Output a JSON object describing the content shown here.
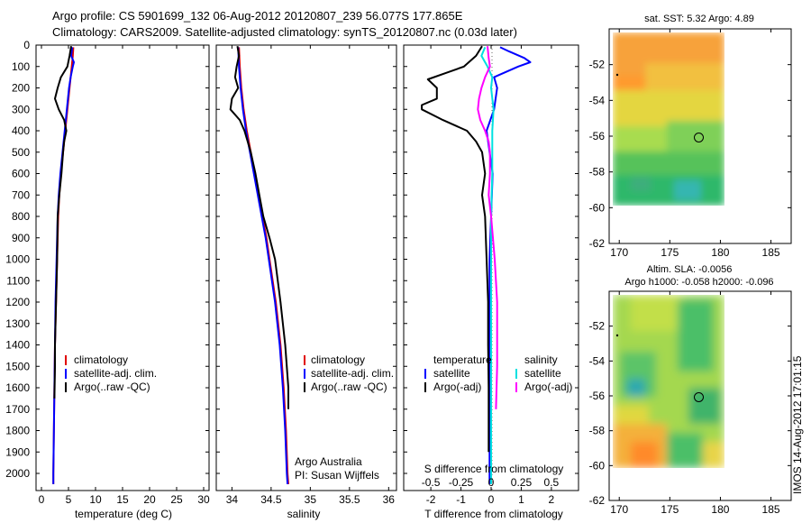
{
  "header": {
    "line1": "Argo profile: CS 5901699_132 06-Aug-2012 20120807_239 56.077S 177.865E",
    "line2": "Climatology: CARS2009. Satellite-adjusted climatology: synTS_20120807.nc (0.03d later)"
  },
  "colors": {
    "climatology": "#e00000",
    "satellite": "#0000ff",
    "argo": "#000000",
    "sal_satellite": "#00e0e0",
    "sal_argo": "#ff00ff"
  },
  "chart_data": [
    {
      "type": "line",
      "panel": "temperature",
      "xlabel": "temperature (deg C)",
      "ylabel": "",
      "xlim": [
        -1,
        31
      ],
      "ylim": [
        2080,
        0
      ],
      "xticks": [
        "0",
        "5",
        "10",
        "15",
        "20",
        "25",
        "30"
      ],
      "yticks": [
        "0",
        "100",
        "200",
        "300",
        "400",
        "500",
        "600",
        "700",
        "800",
        "900",
        "1000",
        "1100",
        "1200",
        "1300",
        "1400",
        "1500",
        "1600",
        "1700",
        "1800",
        "1900",
        "2000"
      ],
      "legend": [
        "climatology",
        "satellite-adj. clim.",
        "Argo(..raw -QC)"
      ],
      "series": [
        {
          "name": "climatology",
          "color": "#e00000",
          "y": [
            10,
            50,
            100,
            200,
            300,
            400,
            500,
            600,
            700,
            800,
            1000,
            1200,
            1400,
            1600,
            1800,
            2000,
            2050
          ],
          "x": [
            5.9,
            5.8,
            5.6,
            5.2,
            4.8,
            4.4,
            4.0,
            3.6,
            3.3,
            3.1,
            2.9,
            2.7,
            2.5,
            2.4,
            2.3,
            2.2,
            2.2
          ]
        },
        {
          "name": "satellite-adj. clim.",
          "color": "#0000ff",
          "y": [
            10,
            50,
            80,
            100,
            150,
            200,
            300,
            400,
            500,
            600,
            700,
            800,
            1000,
            1200,
            1400,
            1600,
            1800,
            2000,
            2050
          ],
          "x": [
            5.7,
            5.5,
            6.0,
            5.8,
            5.4,
            5.1,
            4.7,
            4.3,
            3.9,
            3.5,
            3.2,
            3.0,
            2.8,
            2.6,
            2.5,
            2.4,
            2.3,
            2.2,
            2.2
          ]
        },
        {
          "name": "Argo(..raw -QC)",
          "color": "#000000",
          "y": [
            5,
            50,
            100,
            150,
            200,
            250,
            300,
            350,
            400,
            450,
            500,
            600,
            700,
            800,
            1000,
            1200,
            1400,
            1500,
            1650
          ],
          "x": [
            5.5,
            5.2,
            4.8,
            3.6,
            3.0,
            2.5,
            3.2,
            4.2,
            4.6,
            4.2,
            4.0,
            3.7,
            3.3,
            3.0,
            2.9,
            2.7,
            2.5,
            2.5,
            2.4
          ]
        }
      ]
    },
    {
      "type": "line",
      "panel": "salinity",
      "xlabel": "salinity",
      "ylabel": "",
      "xlim": [
        33.8,
        36.1
      ],
      "ylim": [
        2080,
        0
      ],
      "xticks": [
        "34",
        "34.5",
        "35",
        "35.5",
        "36"
      ],
      "legend": [
        "climatology",
        "satellite-adj. clim.",
        "Argo(..raw -QC)"
      ],
      "annotation": [
        "Argo Australia",
        "PI: Susan Wijffels"
      ],
      "series": [
        {
          "name": "climatology",
          "color": "#e00000",
          "y": [
            10,
            100,
            200,
            300,
            400,
            500,
            600,
            700,
            800,
            900,
            1000,
            1200,
            1400,
            1600,
            1800,
            2000,
            2050
          ],
          "x": [
            34.09,
            34.1,
            34.12,
            34.15,
            34.19,
            34.24,
            34.29,
            34.34,
            34.39,
            34.44,
            34.48,
            34.56,
            34.62,
            34.66,
            34.69,
            34.71,
            34.72
          ]
        },
        {
          "name": "satellite-adj. clim.",
          "color": "#0000ff",
          "y": [
            10,
            100,
            200,
            300,
            400,
            500,
            600,
            700,
            800,
            900,
            1000,
            1200,
            1400,
            1600,
            1800,
            2000,
            2050
          ],
          "x": [
            34.08,
            34.09,
            34.11,
            34.14,
            34.18,
            34.23,
            34.28,
            34.33,
            34.38,
            34.43,
            34.47,
            34.55,
            34.61,
            34.65,
            34.68,
            34.7,
            34.71
          ]
        },
        {
          "name": "Argo(..raw -QC)",
          "color": "#000000",
          "y": [
            5,
            50,
            100,
            150,
            200,
            250,
            300,
            350,
            400,
            450,
            500,
            600,
            700,
            800,
            900,
            1000,
            1200,
            1400,
            1600,
            1700
          ],
          "x": [
            34.07,
            34.09,
            34.06,
            34.04,
            34.08,
            34.0,
            33.98,
            34.1,
            34.16,
            34.2,
            34.24,
            34.3,
            34.35,
            34.4,
            34.48,
            34.55,
            34.62,
            34.68,
            34.72,
            34.72
          ]
        }
      ]
    },
    {
      "type": "line",
      "panel": "difference",
      "xlabel": "T difference from climatology",
      "xlabel_top": "S difference from climatology",
      "xlim": [
        -2.9,
        2.9
      ],
      "ylim": [
        2080,
        0
      ],
      "xticks": [
        "-2",
        "-1",
        "0",
        "1",
        "2"
      ],
      "xticks_top": [
        "-0.5",
        "-0.25",
        "0",
        "0.25",
        "0.5"
      ],
      "legend_temperature": [
        "temperature",
        "satellite",
        "Argo(-adj)"
      ],
      "legend_salinity": [
        "salinity",
        "satellite",
        "Argo(-adj)"
      ],
      "series": [
        {
          "name": "temperature satellite",
          "color": "#0000ff",
          "y": [
            10,
            30,
            60,
            80,
            100,
            150,
            200,
            300,
            400,
            600,
            800,
            1000,
            1500,
            2000,
            2050
          ],
          "x": [
            0.3,
            0.6,
            1.1,
            1.3,
            0.9,
            0.1,
            0.2,
            0.1,
            -0.15,
            0.05,
            0.0,
            -0.05,
            -0.05,
            -0.05,
            -0.05
          ]
        },
        {
          "name": "temperature Argo(-adj)",
          "color": "#000000",
          "y": [
            5,
            50,
            100,
            130,
            160,
            200,
            250,
            280,
            300,
            350,
            400,
            450,
            500,
            600,
            700,
            800,
            1000,
            1200,
            1400,
            1600,
            1800,
            1900
          ],
          "x": [
            -0.3,
            -0.5,
            -0.9,
            -1.5,
            -2.1,
            -1.8,
            -1.8,
            -2.3,
            -2.3,
            -1.6,
            -0.8,
            -0.5,
            -0.3,
            -0.2,
            -0.3,
            -0.2,
            -0.15,
            -0.1,
            -0.1,
            -0.08,
            -0.08,
            -0.08
          ]
        },
        {
          "name": "salinity satellite",
          "color": "#00e0e0",
          "y": [
            10,
            50,
            80,
            100,
            150,
            200,
            300,
            400,
            600,
            800,
            1000,
            1400,
            1800,
            2000,
            2050
          ],
          "x": [
            -0.05,
            -0.08,
            -0.05,
            -0.03,
            0.01,
            0.0,
            0.02,
            0.01,
            0.01,
            0.0,
            0.0,
            0.0,
            0.0,
            0.0,
            0.0
          ]
        },
        {
          "name": "salinity Argo(-adj)",
          "color": "#ff00ff",
          "y": [
            5,
            60,
            100,
            150,
            200,
            250,
            300,
            350,
            400,
            450,
            500,
            600,
            700,
            800,
            1000,
            1200,
            1500,
            1700
          ],
          "x": [
            -0.03,
            -0.02,
            -0.01,
            -0.05,
            -0.08,
            -0.1,
            -0.11,
            -0.09,
            -0.05,
            -0.02,
            -0.01,
            -0.01,
            -0.02,
            0.0,
            0.03,
            0.05,
            0.05,
            0.04
          ]
        }
      ]
    },
    {
      "type": "heatmap",
      "panel": "sst",
      "title": "sat. SST: 5.32 Argo: 4.89",
      "xlim": [
        169,
        187
      ],
      "ylim": [
        -62,
        -50
      ],
      "xticks": [
        "170",
        "175",
        "180",
        "185"
      ],
      "yticks": [
        "-52",
        "-54",
        "-56",
        "-58",
        "-60",
        "-62"
      ],
      "marker": {
        "lon": 177.865,
        "lat": -56.077
      }
    },
    {
      "type": "heatmap",
      "panel": "sla",
      "title": "Altim. SLA: -0.0056",
      "subtitle": "Argo h1000: -0.058 h2000: -0.096",
      "xlim": [
        169,
        187
      ],
      "ylim": [
        -62,
        -50
      ],
      "xticks": [
        "170",
        "175",
        "180",
        "185"
      ],
      "yticks": [
        "-52",
        "-54",
        "-56",
        "-58",
        "-60",
        "-62"
      ],
      "marker": {
        "lon": 177.865,
        "lat": -56.077
      }
    }
  ],
  "footer_stamp": "IMOS 14-Aug-2012 17:01:15"
}
